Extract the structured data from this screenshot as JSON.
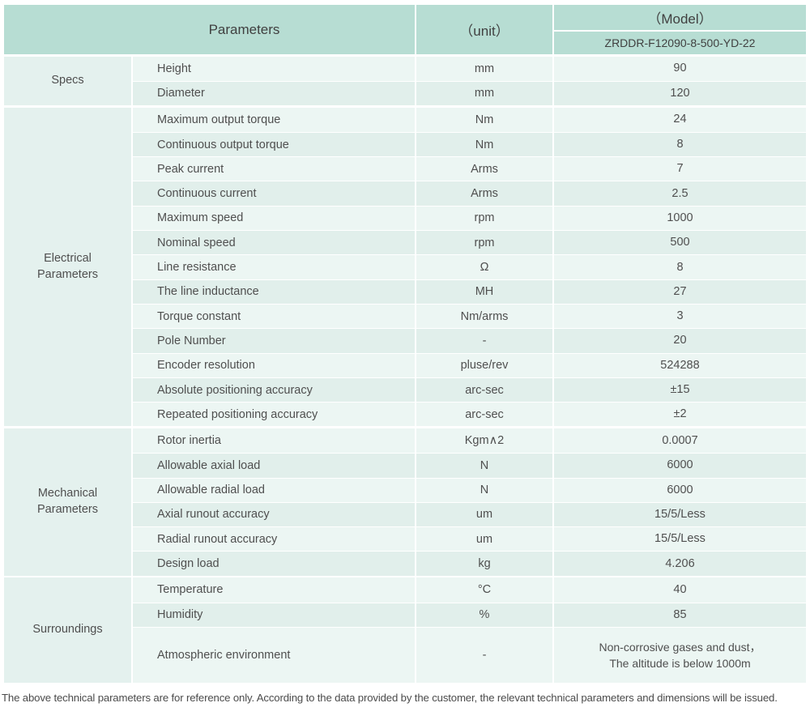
{
  "colors": {
    "header_bg": "#b7ddd3",
    "row_light": "#ecf6f3",
    "row_dark": "#e1efeb",
    "group_cell_bg": "#e4f1ee"
  },
  "table": {
    "header": {
      "parameters_label": "Parameters",
      "unit_label": "（unit）",
      "model_label": "（Model）",
      "model_value": "ZRDDR-F12090-8-500-YD-22"
    },
    "sections": [
      {
        "group": "Specs",
        "rows": [
          {
            "name": "Height",
            "unit": "mm",
            "value": "90"
          },
          {
            "name": "Diameter",
            "unit": "mm",
            "value": "120"
          }
        ]
      },
      {
        "group": "Electrical\nParameters",
        "rows": [
          {
            "name": "Maximum output torque",
            "unit": "Nm",
            "value": "24"
          },
          {
            "name": "Continuous output torque",
            "unit": "Nm",
            "value": "8"
          },
          {
            "name": "Peak current",
            "unit": "Arms",
            "value": "7"
          },
          {
            "name": "Continuous current",
            "unit": "Arms",
            "value": "2.5"
          },
          {
            "name": "Maximum speed",
            "unit": "rpm",
            "value": "1000"
          },
          {
            "name": "Nominal speed",
            "unit": "rpm",
            "value": "500"
          },
          {
            "name": "Line resistance",
            "unit": "Ω",
            "value": "8"
          },
          {
            "name": "The line inductance",
            "unit": "MH",
            "value": "27"
          },
          {
            "name": "Torque constant",
            "unit": "Nm/arms",
            "value": "3"
          },
          {
            "name": "Pole Number",
            "unit": "-",
            "value": "20"
          },
          {
            "name": "Encoder resolution",
            "unit": "pluse/rev",
            "value": "524288"
          },
          {
            "name": "Absolute positioning accuracy",
            "unit": "arc-sec",
            "value": "±15"
          },
          {
            "name": "Repeated positioning accuracy",
            "unit": "arc-sec",
            "value": "±2"
          }
        ]
      },
      {
        "group": "Mechanical\nParameters",
        "rows": [
          {
            "name": "Rotor inertia",
            "unit": "Kgm∧2",
            "value": "0.0007"
          },
          {
            "name": "Allowable axial load",
            "unit": "N",
            "value": "6000"
          },
          {
            "name": "Allowable radial load",
            "unit": "N",
            "value": "6000"
          },
          {
            "name": "Axial runout accuracy",
            "unit": "um",
            "value": "15/5/Less"
          },
          {
            "name": "Radial runout accuracy",
            "unit": "um",
            "value": "15/5/Less"
          },
          {
            "name": "Design load",
            "unit": "kg",
            "value": "4.206"
          }
        ]
      },
      {
        "group": "Surroundings",
        "rows": [
          {
            "name": "Temperature",
            "unit": "°C",
            "value": "40"
          },
          {
            "name": "Humidity",
            "unit": "%",
            "value": "85"
          },
          {
            "name": "Atmospheric environment",
            "unit": "-",
            "value": "Non-corrosive gases and dust，\nThe altitude is below 1000m"
          }
        ]
      }
    ]
  },
  "footer": {
    "note": "The above technical parameters are for reference only. According to the data provided by the customer, the relevant technical parameters and dimensions will be issued."
  }
}
